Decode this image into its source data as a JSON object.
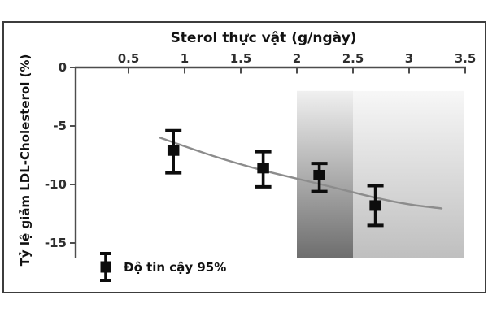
{
  "chart_data": {
    "type": "scatter",
    "title": "Sterol thực vật (g/ngày)",
    "xlabel": "Sterol thực vật (g/ngày)",
    "ylabel": "Tỷ lệ giảm LDL-Cholesterol (%)",
    "x_axis": {
      "position": "top",
      "range": [
        0,
        3.5
      ],
      "tick_values": [
        0.5,
        1,
        1.5,
        2,
        2.5,
        3,
        3.5
      ],
      "tick_labels": [
        "0.5",
        "1",
        "1.5",
        "2",
        "2.5",
        "3",
        "3.5"
      ]
    },
    "y_axis": {
      "position": "left",
      "range": [
        0,
        -16.3
      ],
      "tick_values": [
        0,
        -5,
        -10,
        -15
      ],
      "tick_labels": [
        "0",
        "-5",
        "-10",
        "-15"
      ]
    },
    "grid": false,
    "legend": {
      "label": "Độ tin cậy 95%",
      "marker": "error-bar-square",
      "position": "bottom-left"
    },
    "points": [
      {
        "x": 0.9,
        "y": -7.1,
        "ci_low": -9.0,
        "ci_high": -5.4
      },
      {
        "x": 1.7,
        "y": -8.6,
        "ci_low": -10.2,
        "ci_high": -7.2
      },
      {
        "x": 2.2,
        "y": -9.2,
        "ci_low": -10.6,
        "ci_high": -8.2
      },
      {
        "x": 2.7,
        "y": -11.8,
        "ci_low": -13.5,
        "ci_high": -10.1
      }
    ],
    "trend_curve": [
      [
        0.78,
        -6.0
      ],
      [
        1.25,
        -7.55
      ],
      [
        1.7,
        -8.8
      ],
      [
        2.22,
        -10.0
      ],
      [
        2.71,
        -11.15
      ],
      [
        3.0,
        -11.7
      ],
      [
        3.29,
        -12.05
      ]
    ],
    "shaded_bands": [
      {
        "x_from": 2.0,
        "x_to": 2.5,
        "y_from": -2.0,
        "y_to": -16.25,
        "gradient_top": "#f0f0f0",
        "gradient_bottom": "#6e6e6e"
      },
      {
        "x_from": 2.5,
        "x_to": 3.49,
        "y_from": -2.0,
        "y_to": -16.25,
        "gradient_top": "#f7f7f7",
        "gradient_bottom": "#bfbfbf"
      }
    ],
    "colors": {
      "points": "#0d0d0d",
      "curve": "#8c8c8c",
      "axis": "#4d4d4d",
      "frame": "#3c3c3c",
      "text": "#111111"
    }
  }
}
